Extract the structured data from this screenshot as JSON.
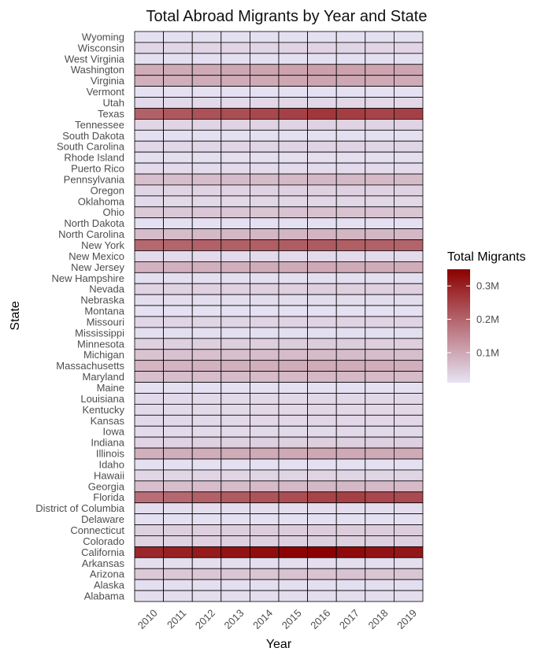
{
  "chart_data": {
    "type": "heatmap",
    "title": "Total Abroad Migrants by Year and State",
    "xlabel": "Year",
    "ylabel": "State",
    "x": [
      "2010",
      "2011",
      "2012",
      "2013",
      "2014",
      "2015",
      "2016",
      "2017",
      "2018",
      "2019"
    ],
    "y": [
      "Wyoming",
      "Wisconsin",
      "West Virginia",
      "Washington",
      "Virginia",
      "Vermont",
      "Utah",
      "Texas",
      "Tennessee",
      "South Dakota",
      "South Carolina",
      "Rhode Island",
      "Puerto Rico",
      "Pennsylvania",
      "Oregon",
      "Oklahoma",
      "Ohio",
      "North Dakota",
      "North Carolina",
      "New York",
      "New Mexico",
      "New Jersey",
      "New Hampshire",
      "Nevada",
      "Nebraska",
      "Montana",
      "Missouri",
      "Mississippi",
      "Minnesota",
      "Michigan",
      "Massachusetts",
      "Maryland",
      "Maine",
      "Louisiana",
      "Kentucky",
      "Kansas",
      "Iowa",
      "Indiana",
      "Illinois",
      "Idaho",
      "Hawaii",
      "Georgia",
      "Florida",
      "District of Columbia",
      "Delaware",
      "Connecticut",
      "Colorado",
      "California",
      "Arkansas",
      "Arizona",
      "Alaska",
      "Alabama"
    ],
    "values": [
      [
        4000,
        4000,
        4000,
        4000,
        4000,
        4000,
        4000,
        4000,
        4000,
        4000
      ],
      [
        20000,
        20000,
        21000,
        21000,
        22000,
        23000,
        23000,
        22000,
        21000,
        21000
      ],
      [
        5000,
        5000,
        5000,
        5000,
        5000,
        5000,
        5000,
        5000,
        5000,
        5000
      ],
      [
        85000,
        88000,
        90000,
        92000,
        96000,
        100000,
        103000,
        100000,
        97000,
        95000
      ],
      [
        80000,
        82000,
        85000,
        87000,
        90000,
        93000,
        95000,
        92000,
        90000,
        88000
      ],
      [
        3000,
        3000,
        3000,
        3000,
        3000,
        3000,
        3000,
        3000,
        3000,
        3000
      ],
      [
        15000,
        15000,
        16000,
        16000,
        17000,
        18000,
        18000,
        18000,
        17000,
        17000
      ],
      [
        200000,
        215000,
        225000,
        230000,
        240000,
        250000,
        265000,
        255000,
        245000,
        250000
      ],
      [
        20000,
        21000,
        22000,
        23000,
        24000,
        25000,
        26000,
        25000,
        24000,
        24000
      ],
      [
        5000,
        5000,
        5000,
        5000,
        5000,
        5000,
        5000,
        5000,
        5000,
        5000
      ],
      [
        18000,
        19000,
        20000,
        21000,
        22000,
        23000,
        24000,
        23000,
        22000,
        22000
      ],
      [
        7000,
        7000,
        7000,
        7000,
        7000,
        7000,
        7000,
        7000,
        7000,
        7000
      ],
      [
        12000,
        12000,
        12000,
        12000,
        12000,
        12000,
        12000,
        12000,
        12000,
        12000
      ],
      [
        55000,
        57000,
        58000,
        60000,
        62000,
        64000,
        66000,
        65000,
        63000,
        62000
      ],
      [
        22000,
        23000,
        24000,
        25000,
        26000,
        27000,
        28000,
        27000,
        26000,
        26000
      ],
      [
        15000,
        16000,
        17000,
        17000,
        18000,
        18000,
        19000,
        18000,
        18000,
        17000
      ],
      [
        40000,
        42000,
        44000,
        45000,
        47000,
        49000,
        51000,
        50000,
        48000,
        47000
      ],
      [
        5000,
        5000,
        5000,
        5000,
        5000,
        5000,
        5000,
        5000,
        5000,
        5000
      ],
      [
        60000,
        62000,
        64000,
        66000,
        68000,
        70000,
        72000,
        70000,
        68000,
        67000
      ],
      [
        190000,
        195000,
        200000,
        202000,
        205000,
        208000,
        212000,
        205000,
        200000,
        198000
      ],
      [
        12000,
        12000,
        12000,
        12000,
        12000,
        12000,
        12000,
        12000,
        12000,
        12000
      ],
      [
        75000,
        78000,
        80000,
        82000,
        85000,
        88000,
        90000,
        88000,
        85000,
        84000
      ],
      [
        6000,
        6000,
        6000,
        6000,
        6000,
        6000,
        6000,
        6000,
        6000,
        6000
      ],
      [
        25000,
        26000,
        27000,
        28000,
        29000,
        30000,
        31000,
        30000,
        29000,
        29000
      ],
      [
        10000,
        10000,
        10000,
        10000,
        11000,
        11000,
        11000,
        11000,
        11000,
        11000
      ],
      [
        3000,
        3000,
        3000,
        3000,
        3000,
        3000,
        3000,
        3000,
        3000,
        3000
      ],
      [
        20000,
        21000,
        22000,
        22000,
        23000,
        24000,
        25000,
        24000,
        23000,
        23000
      ],
      [
        6000,
        6000,
        6000,
        6000,
        6000,
        6000,
        6000,
        6000,
        6000,
        6000
      ],
      [
        28000,
        29000,
        30000,
        31000,
        32000,
        33000,
        34000,
        33000,
        32000,
        32000
      ],
      [
        50000,
        52000,
        54000,
        56000,
        58000,
        60000,
        62000,
        60000,
        58000,
        57000
      ],
      [
        70000,
        72000,
        75000,
        77000,
        80000,
        83000,
        86000,
        84000,
        82000,
        80000
      ],
      [
        55000,
        57000,
        59000,
        60000,
        62000,
        64000,
        66000,
        65000,
        63000,
        62000
      ],
      [
        4000,
        4000,
        4000,
        4000,
        4000,
        4000,
        4000,
        4000,
        4000,
        4000
      ],
      [
        15000,
        15000,
        16000,
        16000,
        17000,
        17000,
        18000,
        17000,
        17000,
        17000
      ],
      [
        15000,
        15000,
        16000,
        16000,
        17000,
        17000,
        18000,
        17000,
        17000,
        17000
      ],
      [
        15000,
        15000,
        16000,
        16000,
        17000,
        17000,
        18000,
        17000,
        17000,
        17000
      ],
      [
        12000,
        12000,
        13000,
        13000,
        14000,
        14000,
        15000,
        14000,
        14000,
        14000
      ],
      [
        25000,
        26000,
        27000,
        28000,
        29000,
        30000,
        31000,
        30000,
        29000,
        29000
      ],
      [
        80000,
        82000,
        84000,
        86000,
        88000,
        90000,
        92000,
        90000,
        88000,
        87000
      ],
      [
        5000,
        5000,
        5000,
        5000,
        5000,
        5000,
        5000,
        5000,
        5000,
        5000
      ],
      [
        20000,
        20000,
        21000,
        21000,
        22000,
        22000,
        23000,
        22000,
        22000,
        22000
      ],
      [
        55000,
        57000,
        59000,
        61000,
        63000,
        65000,
        67000,
        66000,
        64000,
        63000
      ],
      [
        180000,
        190000,
        200000,
        210000,
        220000,
        230000,
        245000,
        250000,
        240000,
        235000
      ],
      [
        10000,
        10000,
        10000,
        10000,
        10000,
        10000,
        10000,
        10000,
        10000,
        10000
      ],
      [
        5000,
        5000,
        5000,
        5000,
        5000,
        5000,
        5000,
        5000,
        5000,
        5000
      ],
      [
        30000,
        31000,
        32000,
        33000,
        34000,
        35000,
        36000,
        35000,
        34000,
        34000
      ],
      [
        25000,
        26000,
        27000,
        28000,
        29000,
        30000,
        31000,
        30000,
        29000,
        29000
      ],
      [
        290000,
        300000,
        310000,
        320000,
        330000,
        345000,
        350000,
        335000,
        320000,
        315000
      ],
      [
        7000,
        7000,
        7000,
        7000,
        7000,
        7000,
        7000,
        7000,
        7000,
        7000
      ],
      [
        40000,
        42000,
        44000,
        45000,
        47000,
        49000,
        50000,
        49000,
        47000,
        46000
      ],
      [
        6000,
        6000,
        6000,
        6000,
        6000,
        6000,
        6000,
        6000,
        6000,
        6000
      ],
      [
        10000,
        10000,
        10000,
        10000,
        10000,
        10000,
        10000,
        10000,
        10000,
        10000
      ]
    ],
    "zlim": [
      0,
      350000
    ],
    "color_low": "#e6e3f4",
    "color_high": "#8b0000",
    "cell_border_color": "#000000",
    "legend": {
      "title": "Total Migrants",
      "position": "right",
      "ticks": [
        100000,
        200000,
        300000
      ],
      "tick_labels": [
        "0.1M",
        "0.2M",
        "0.3M"
      ]
    },
    "grid": false
  }
}
